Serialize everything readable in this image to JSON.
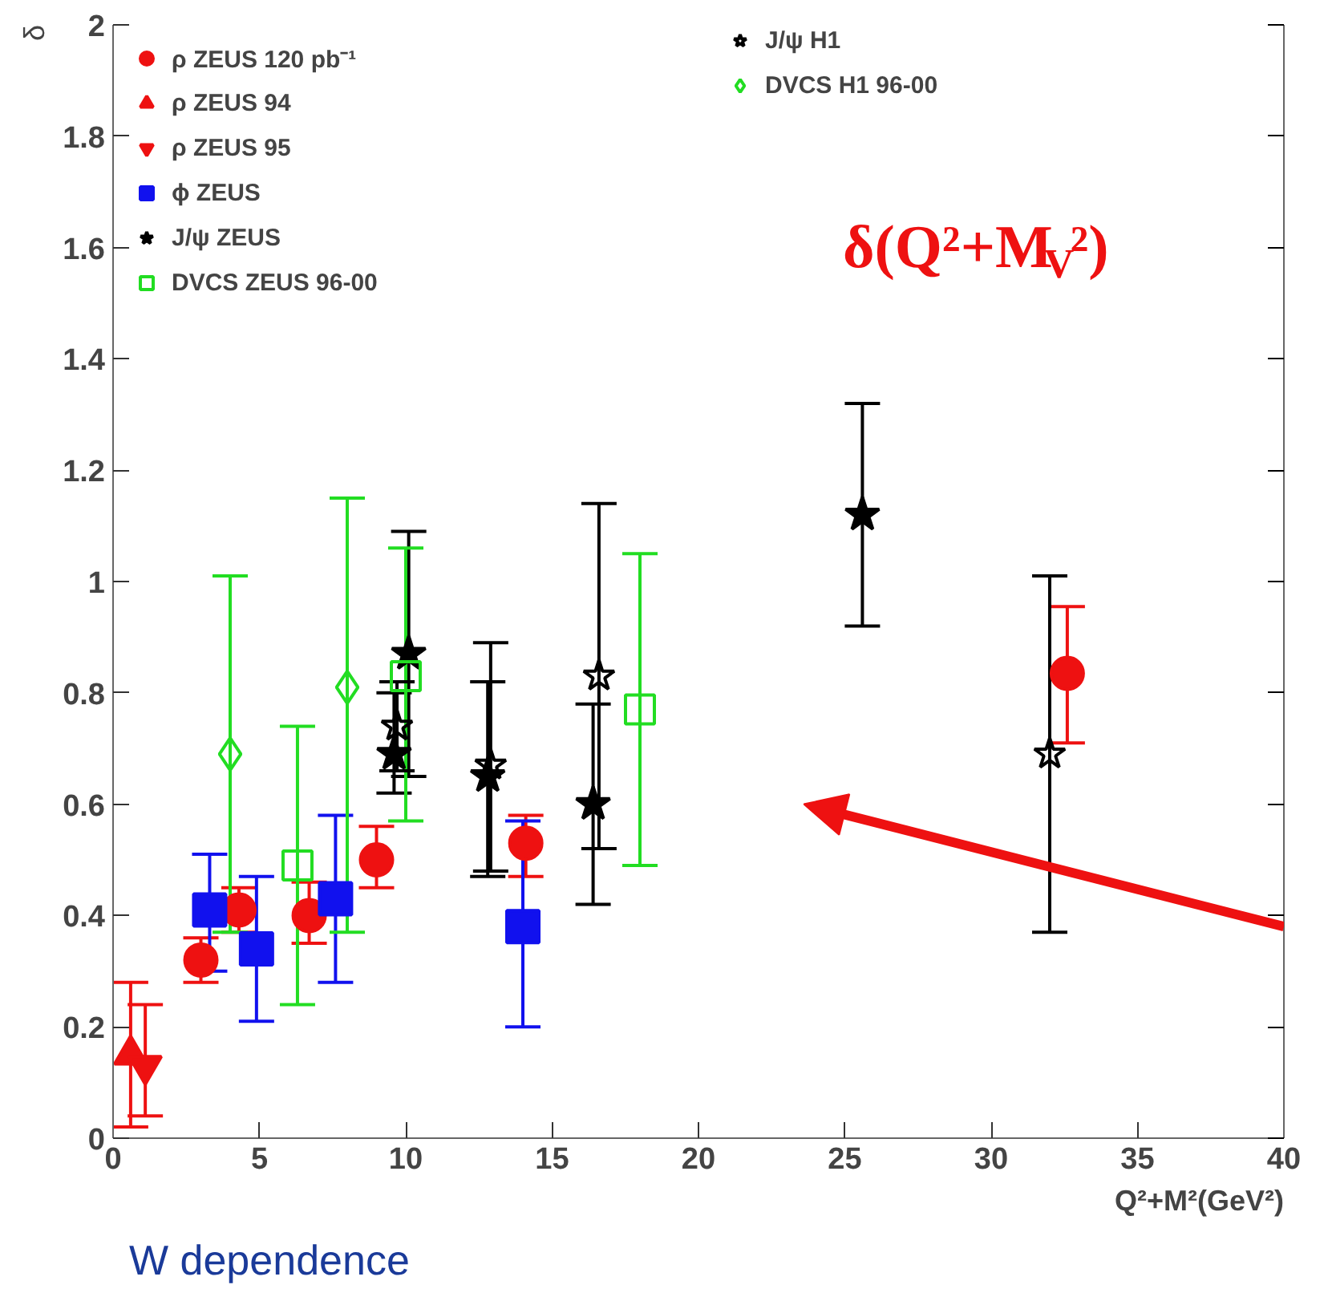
{
  "chart_data": {
    "type": "scatter",
    "xlabel": "Q²+M²(GeV²)",
    "ylabel": "δ",
    "xlim": [
      0,
      40
    ],
    "ylim": [
      0,
      2
    ],
    "xticks": [
      0,
      5,
      10,
      15,
      20,
      25,
      30,
      35,
      40
    ],
    "yticks": [
      0,
      0.2,
      0.4,
      0.6,
      0.8,
      1,
      1.2,
      1.4,
      1.6,
      1.8,
      2
    ],
    "grid": false,
    "legend": "top",
    "annotations": [
      "δ(Q²+M$_{V}$²)",
      "W dependence"
    ],
    "series": [
      {
        "name": "ρ ZEUS 120 pb⁻¹",
        "color": "#ee1111",
        "marker": "circle",
        "x": [
          3,
          4.3,
          6.7,
          9,
          14.1,
          32.6
        ],
        "values": [
          0.32,
          0.41,
          0.4,
          0.5,
          0.53,
          0.835
        ],
        "errors": [
          [
            0.28,
            0.36
          ],
          [
            0.37,
            0.45
          ],
          [
            0.35,
            0.46
          ],
          [
            0.45,
            0.56
          ],
          [
            0.47,
            0.58
          ],
          [
            0.71,
            0.955
          ]
        ]
      },
      {
        "name": "ρ ZEUS 94",
        "color": "#ee1111",
        "marker": "triangle",
        "x": [
          0.6
        ],
        "values": [
          0.15
        ],
        "errors": [
          [
            0.02,
            0.28
          ]
        ]
      },
      {
        "name": "ρ ZEUS 95",
        "color": "#ee1111",
        "marker": "triangle_down",
        "x": [
          1.1
        ],
        "values": [
          0.13
        ],
        "errors": [
          [
            0.04,
            0.24
          ]
        ]
      },
      {
        "name": "ϕ ZEUS",
        "color": "#1111ee",
        "marker": "square",
        "x": [
          3.3,
          4.9,
          7.6,
          14
        ],
        "values": [
          0.41,
          0.34,
          0.43,
          0.38
        ],
        "errors": [
          [
            0.3,
            0.51
          ],
          [
            0.21,
            0.47
          ],
          [
            0.28,
            0.58
          ],
          [
            0.2,
            0.57
          ]
        ]
      },
      {
        "name": "J/ψ ZEUS",
        "color": "#000000",
        "marker": "star",
        "x": [
          9.6,
          10.1,
          12.8,
          16.4,
          25.6
        ],
        "values": [
          0.69,
          0.87,
          0.65,
          0.6,
          1.12
        ],
        "errors": [
          [
            0.62,
            0.8
          ],
          [
            0.65,
            1.09
          ],
          [
            0.47,
            0.82
          ],
          [
            0.42,
            0.78
          ],
          [
            0.92,
            1.32
          ]
        ]
      },
      {
        "name": "DVCS ZEUS 96-00",
        "color": "#22dd22",
        "marker": "square_open",
        "x": [
          6.3,
          10,
          18
        ],
        "values": [
          0.49,
          0.83,
          0.77
        ],
        "errors": [
          [
            0.24,
            0.74
          ],
          [
            0.57,
            1.06
          ],
          [
            0.49,
            1.05
          ]
        ]
      },
      {
        "name": "J/ψ H1",
        "color": "#000000",
        "marker": "star_open",
        "x": [
          9.7,
          12.9,
          16.6,
          32
        ],
        "values": [
          0.74,
          0.67,
          0.83,
          0.69
        ],
        "errors": [
          [
            0.66,
            0.82
          ],
          [
            0.48,
            0.89
          ],
          [
            0.52,
            1.14
          ],
          [
            0.37,
            1.01
          ]
        ]
      },
      {
        "name": "DVCS H1 96-00",
        "color": "#22dd22",
        "marker": "diamond_open",
        "x": [
          4,
          8
        ],
        "values": [
          0.69,
          0.81
        ],
        "errors": [
          [
            0.37,
            1.01
          ],
          [
            0.37,
            1.15
          ]
        ]
      }
    ]
  }
}
